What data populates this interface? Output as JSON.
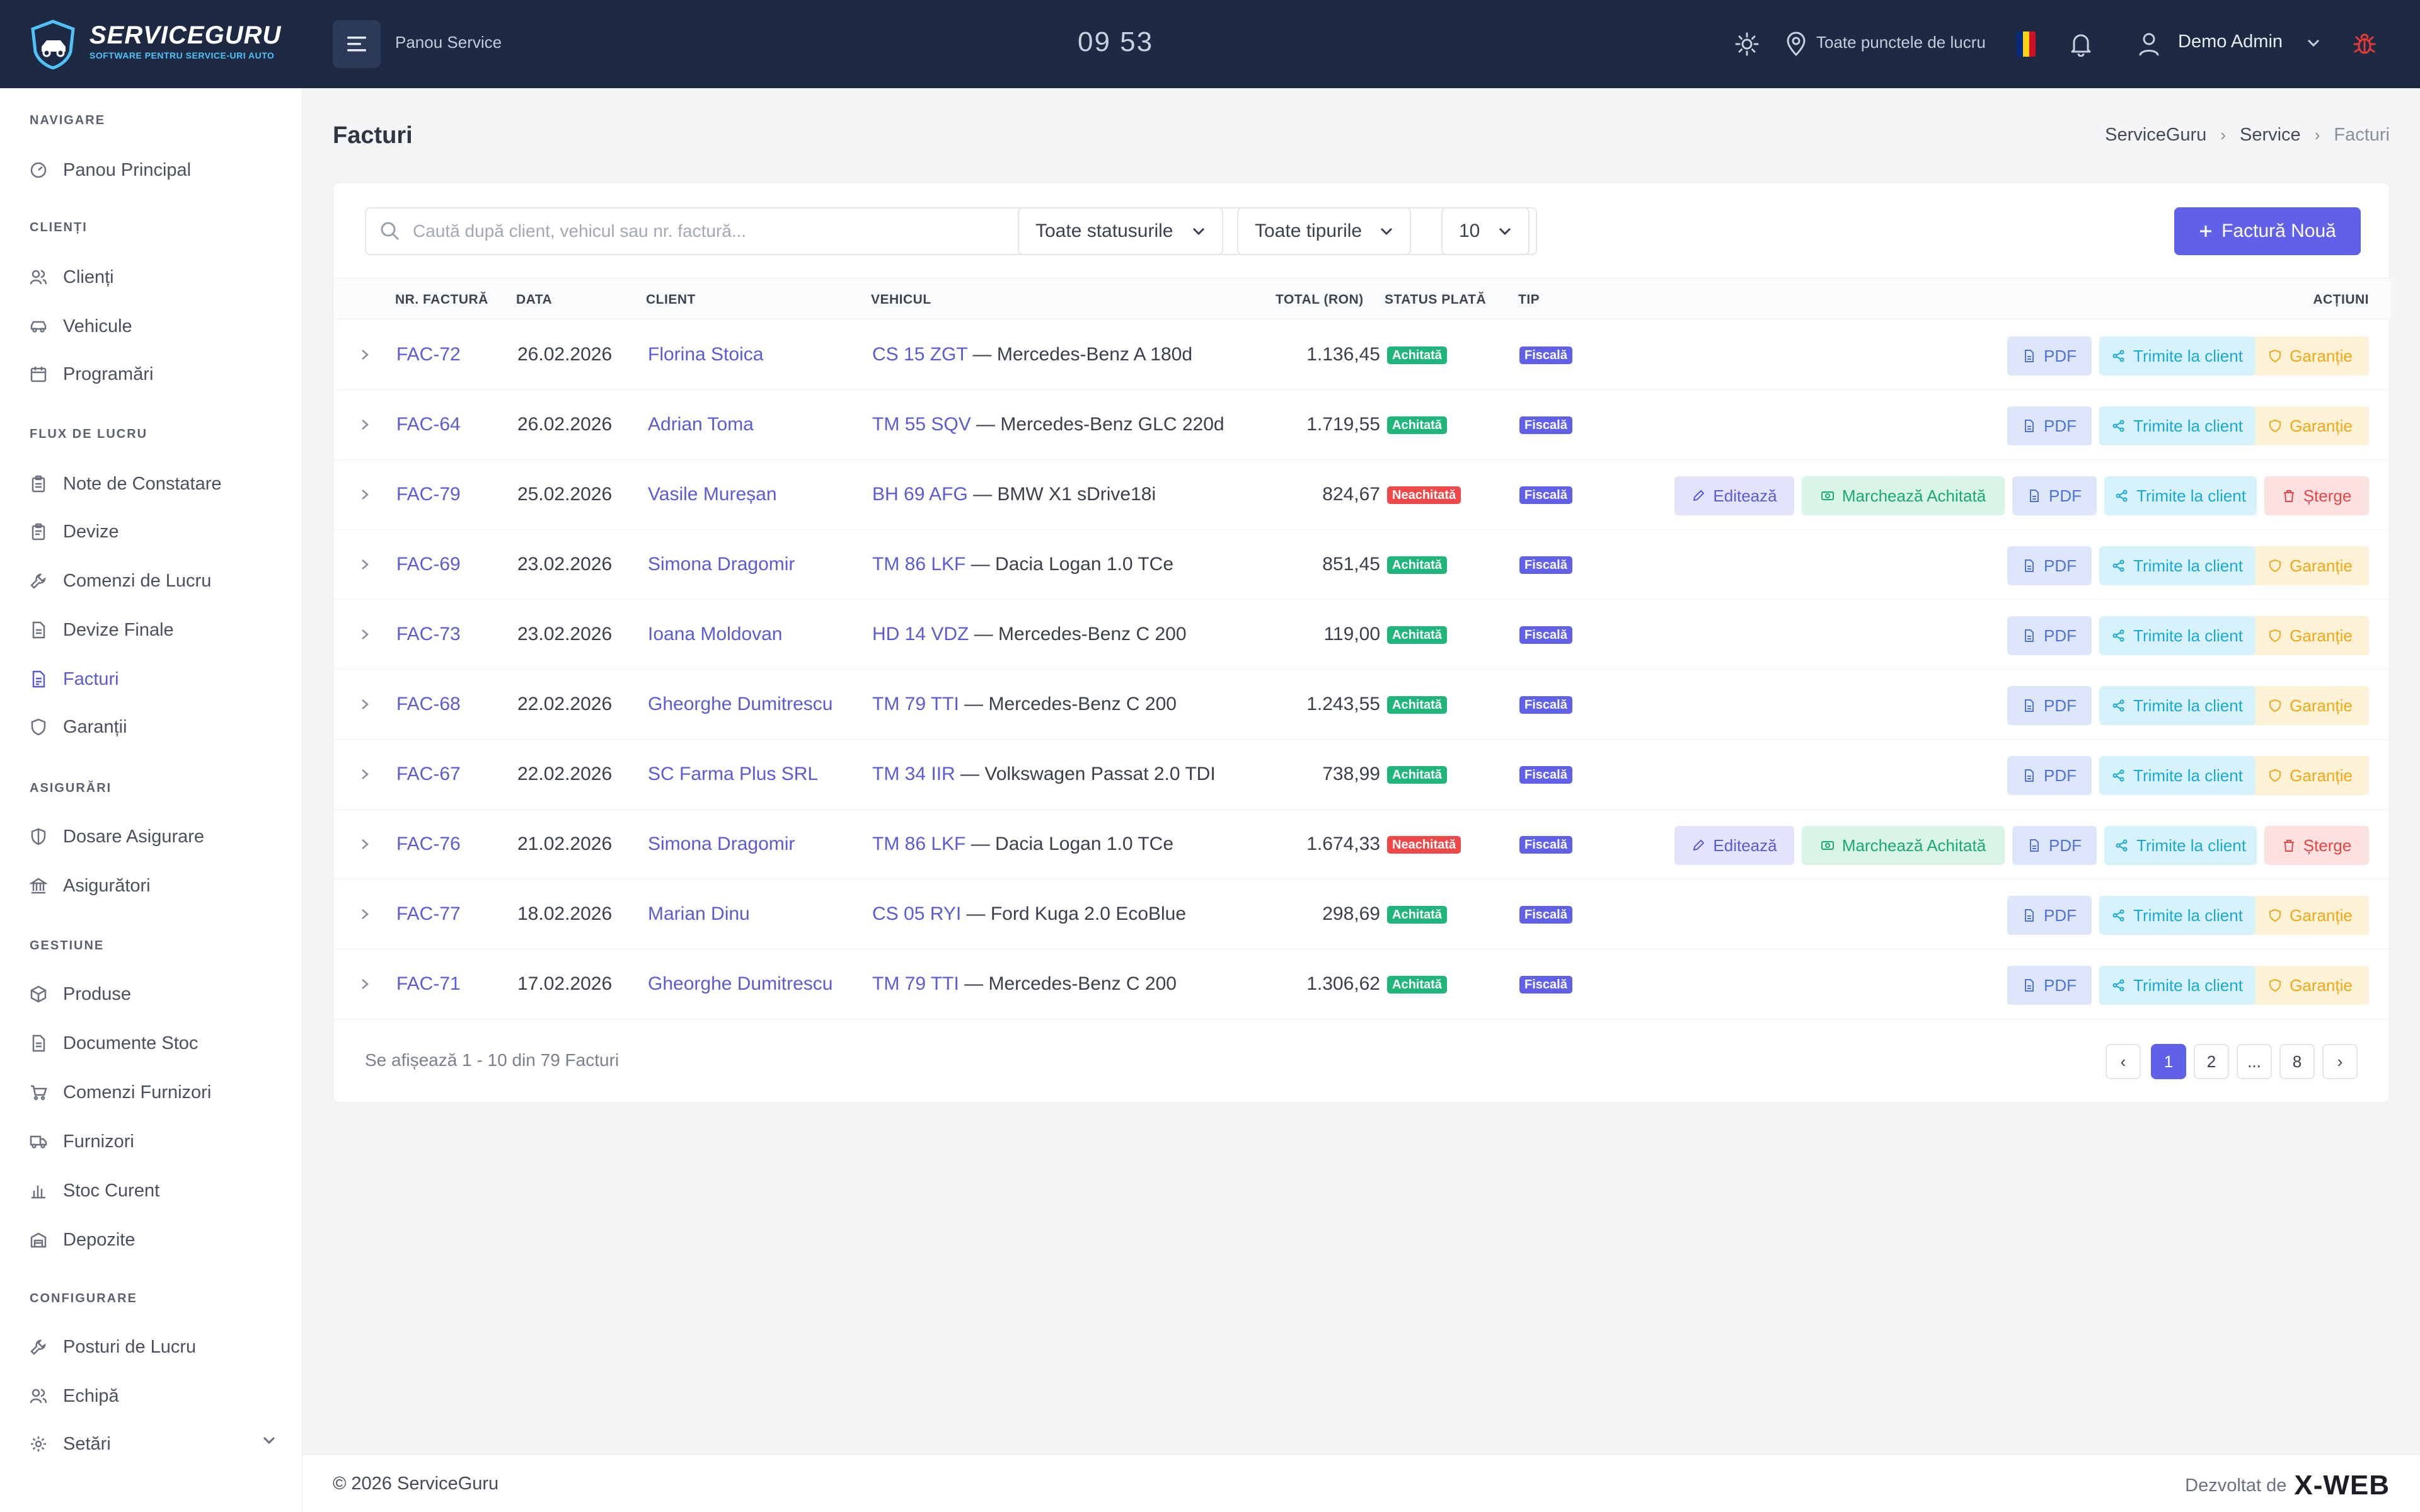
{
  "brand": {
    "name": "SERVICEGURU",
    "tagline": "SOFTWARE PENTRU SERVICE-URI AUTO"
  },
  "topbar": {
    "title": "Panou Service",
    "clock": "09 53",
    "location": "Toate punctele de lucru",
    "user": "Demo Admin",
    "flag_colors": [
      "#002b7f",
      "#fcd116",
      "#ce1126"
    ],
    "icons": [
      "menu-icon",
      "sun-icon",
      "map-pin-icon",
      "bell-icon",
      "user-icon",
      "chevron-down-icon",
      "bug-icon"
    ]
  },
  "sidebar": {
    "sections": {
      "nav": "NAVIGARE",
      "clients": "CLIENȚI",
      "flow": "FLUX DE LUCRU",
      "insurance": "ASIGURĂRI",
      "management": "GESTIUNE",
      "config": "CONFIGURARE"
    },
    "items": {
      "dashboard": "Panou Principal",
      "clients": "Clienți",
      "vehicles": "Vehicule",
      "appointments": "Programări",
      "notes": "Note de Constatare",
      "estimates": "Devize",
      "work_orders": "Comenzi de Lucru",
      "final_estimates": "Devize Finale",
      "invoices": "Facturi",
      "warranties": "Garanții",
      "claims": "Dosare Asigurare",
      "insurers": "Asigurători",
      "products": "Produse",
      "stock_docs": "Documente Stoc",
      "supplier_orders": "Comenzi Furnizori",
      "suppliers": "Furnizori",
      "stock": "Stoc Curent",
      "warehouses": "Depozite",
      "workstations": "Posturi de Lucru",
      "team": "Echipă",
      "settings": "Setări"
    },
    "active": "Facturi",
    "accent": "#5b5bd6"
  },
  "page": {
    "title": "Facturi",
    "breadcrumb": [
      "ServiceGuru",
      "Service",
      "Facturi"
    ]
  },
  "toolbar": {
    "search_placeholder": "Caută după client, vehicul sau nr. factură...",
    "status_filter": "Toate statusurile",
    "type_filter": "Toate tipurile",
    "page_size": "10",
    "new_button": "Factură Nouă",
    "accent": "#6061e8"
  },
  "table": {
    "headers": {
      "number": "NR. FACTURĂ",
      "date": "DATA",
      "client": "CLIENT",
      "vehicle": "VEHICUL",
      "total": "TOTAL (RON)",
      "status": "STATUS PLATĂ",
      "type": "TIP",
      "actions": "ACȚIUNI"
    },
    "action_labels": {
      "edit": "Editează",
      "mark_paid": "Marchează Achitată",
      "pdf": "PDF",
      "send": "Trimite la client",
      "warranty": "Garanție",
      "delete": "Șterge"
    },
    "rows": [
      {
        "number": "FAC-72",
        "date": "26.02.2026",
        "client": "Florina Stoica",
        "plate": "CS 15 ZGT",
        "model": " — Mercedes-Benz A 180d",
        "total": "1.136,45",
        "status": "Achitată",
        "paid": true,
        "type": "Fiscală"
      },
      {
        "number": "FAC-64",
        "date": "26.02.2026",
        "client": "Adrian Toma",
        "plate": "TM 55 SQV",
        "model": " — Mercedes-Benz GLC 220d",
        "total": "1.719,55",
        "status": "Achitată",
        "paid": true,
        "type": "Fiscală"
      },
      {
        "number": "FAC-79",
        "date": "25.02.2026",
        "client": "Vasile Mureșan",
        "plate": "BH 69 AFG",
        "model": " — BMW X1 sDrive18i",
        "total": "824,67",
        "status": "Neachitată",
        "paid": false,
        "type": "Fiscală"
      },
      {
        "number": "FAC-69",
        "date": "23.02.2026",
        "client": "Simona Dragomir",
        "plate": "TM 86 LKF",
        "model": " — Dacia Logan 1.0 TCe",
        "total": "851,45",
        "status": "Achitată",
        "paid": true,
        "type": "Fiscală"
      },
      {
        "number": "FAC-73",
        "date": "23.02.2026",
        "client": "Ioana Moldovan",
        "plate": "HD 14 VDZ",
        "model": " — Mercedes-Benz C 200",
        "total": "119,00",
        "status": "Achitată",
        "paid": true,
        "type": "Fiscală"
      },
      {
        "number": "FAC-68",
        "date": "22.02.2026",
        "client": "Gheorghe Dumitrescu",
        "plate": "TM 79 TTI",
        "model": " — Mercedes-Benz C 200",
        "total": "1.243,55",
        "status": "Achitată",
        "paid": true,
        "type": "Fiscală"
      },
      {
        "number": "FAC-67",
        "date": "22.02.2026",
        "client": "SC Farma Plus SRL",
        "plate": "TM 34 IIR",
        "model": " — Volkswagen Passat 2.0 TDI",
        "total": "738,99",
        "status": "Achitată",
        "paid": true,
        "type": "Fiscală"
      },
      {
        "number": "FAC-76",
        "date": "21.02.2026",
        "client": "Simona Dragomir",
        "plate": "TM 86 LKF",
        "model": " — Dacia Logan 1.0 TCe",
        "total": "1.674,33",
        "status": "Neachitată",
        "paid": false,
        "type": "Fiscală"
      },
      {
        "number": "FAC-77",
        "date": "18.02.2026",
        "client": "Marian Dinu",
        "plate": "CS 05 RYI",
        "model": " — Ford Kuga 2.0 EcoBlue",
        "total": "298,69",
        "status": "Achitată",
        "paid": true,
        "type": "Fiscală"
      },
      {
        "number": "FAC-71",
        "date": "17.02.2026",
        "client": "Gheorghe Dumitrescu",
        "plate": "TM 79 TTI",
        "model": " — Mercedes-Benz C 200",
        "total": "1.306,62",
        "status": "Achitată",
        "paid": true,
        "type": "Fiscală"
      }
    ],
    "status_colors": {
      "paid": "#1fb57b",
      "unpaid": "#ef4848",
      "type": "#6061e8"
    }
  },
  "pagination": {
    "info": "Se afișează 1 - 10 din 79 Facturi",
    "pages": [
      "1",
      "2",
      "...",
      "8"
    ],
    "current": "1",
    "prev": "‹",
    "next": "›"
  },
  "footer": {
    "copyright": "© 2026 ServiceGuru",
    "developed_by": "Dezvoltat de",
    "developer_logo": "X-WEB"
  }
}
